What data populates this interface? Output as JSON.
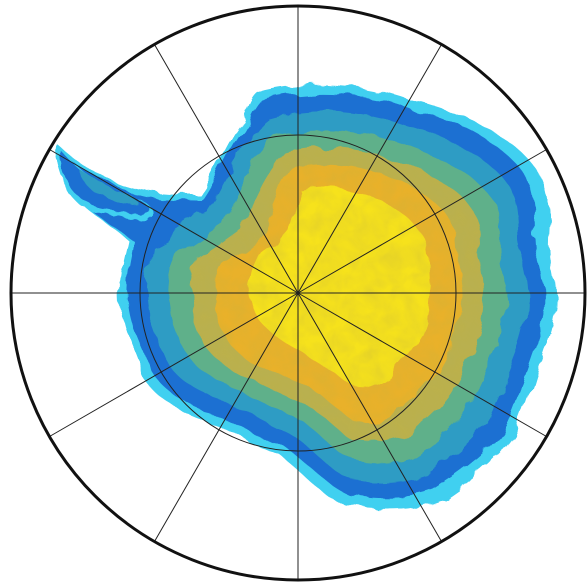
{
  "map": {
    "projection": "south-polar-stereographic",
    "graticule": {
      "meridian_spacing_deg": 30,
      "meridian_count": 12,
      "latitude_circles": [
        "outer-boundary",
        "inner-circle"
      ]
    },
    "colors": {
      "background": "#ffffff",
      "boundary": "#111111",
      "graticule": "#222222",
      "ice_shelf": "#3fd0f0",
      "coast": "#1c6fd2",
      "low": "#2d9cc4",
      "mid_low": "#5fb08a",
      "mid": "#b9b04f",
      "mid_high": "#e9b12b",
      "high": "#f6e21c"
    },
    "legend_visible": false,
    "title_visible": false
  }
}
